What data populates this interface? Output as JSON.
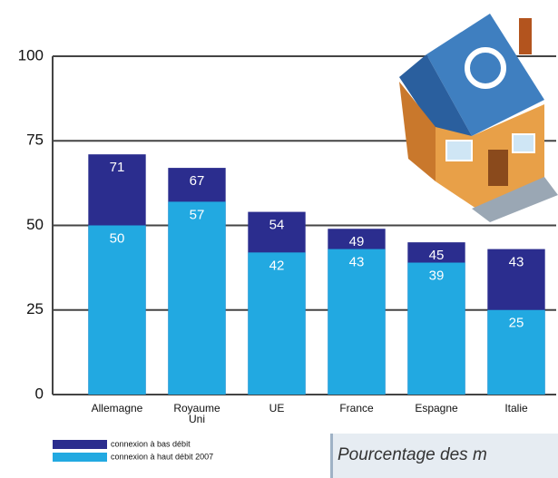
{
  "chart_data": {
    "type": "bar",
    "caption": "Pourcentage des m",
    "categories": [
      "Allemagne",
      "Royaume Uni",
      "UE",
      "France",
      "Espagne",
      "Italie"
    ],
    "series": [
      {
        "name": "connexion à bas débit",
        "color": "#2b2d8e",
        "values": [
          71,
          67,
          54,
          49,
          45,
          43
        ]
      },
      {
        "name": "connexion à haut débit 2007",
        "color": "#22a9e1",
        "values": [
          50,
          57,
          42,
          43,
          39,
          25
        ]
      }
    ],
    "ylim": [
      0,
      100
    ],
    "yticks": [
      0,
      25,
      50,
      75,
      100
    ],
    "grid": true
  }
}
